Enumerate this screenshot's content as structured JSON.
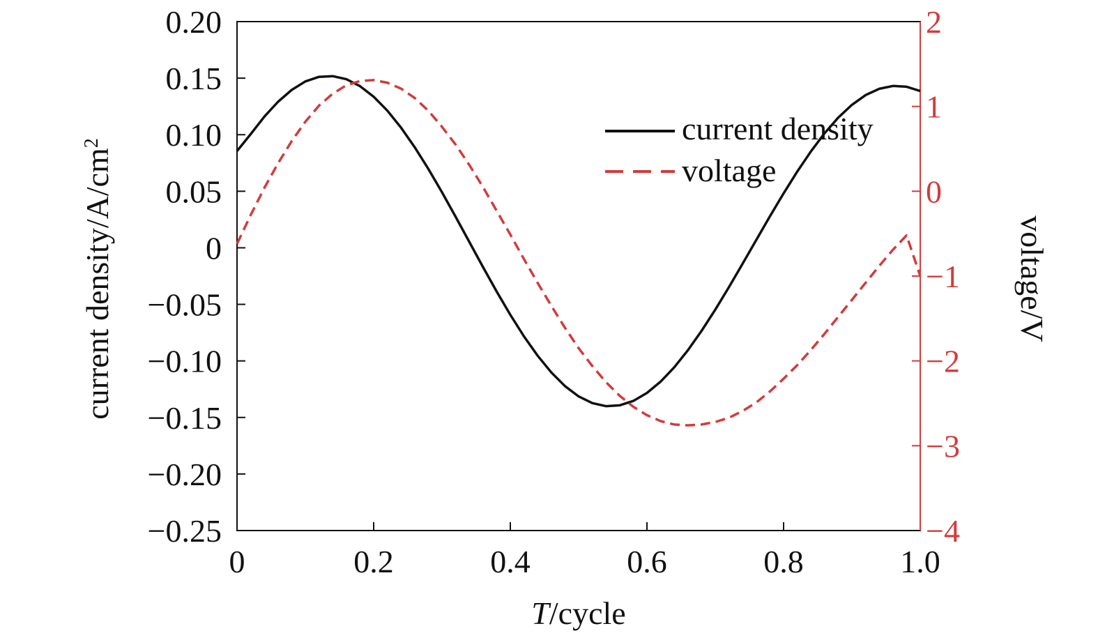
{
  "chart_data": {
    "type": "line",
    "x": [
      0,
      0.02,
      0.04,
      0.06,
      0.08,
      0.1,
      0.12,
      0.14,
      0.16,
      0.18,
      0.2,
      0.22,
      0.24,
      0.26,
      0.28,
      0.3,
      0.32,
      0.34,
      0.36,
      0.38,
      0.4,
      0.42,
      0.44,
      0.46,
      0.48,
      0.5,
      0.52,
      0.54,
      0.56,
      0.58,
      0.6,
      0.62,
      0.64,
      0.66,
      0.68,
      0.7,
      0.72,
      0.74,
      0.76,
      0.78,
      0.8,
      0.82,
      0.84,
      0.86,
      0.88,
      0.9,
      0.92,
      0.94,
      0.96,
      0.98,
      1.0
    ],
    "xlabel_italic": "T",
    "xlabel_rest": "/cycle",
    "ylabel_left": "current density/A/cm",
    "ylabel_left_superscript": "2",
    "ylabel_right": "voltage/V",
    "xlim": [
      0,
      1.0
    ],
    "ylim_left": [
      -0.25,
      0.2
    ],
    "ylim_right": [
      -4,
      2
    ],
    "x_ticks": [
      0,
      0.2,
      0.4,
      0.6,
      0.8,
      1.0
    ],
    "x_tick_labels": [
      "0",
      "0.2",
      "0.4",
      "0.6",
      "0.8",
      "1.0"
    ],
    "y_left_ticks": [
      0.2,
      0.15,
      0.1,
      0.05,
      0,
      -0.05,
      -0.1,
      -0.15,
      -0.2,
      -0.25
    ],
    "y_left_tick_labels": [
      "0.20",
      "0.15",
      "0.10",
      "0.05",
      "0",
      "−0.05",
      "−0.10",
      "−0.15",
      "−0.20",
      "−0.25"
    ],
    "y_right_ticks": [
      2,
      1,
      0,
      -1,
      -2,
      -3,
      -4
    ],
    "y_right_tick_labels": [
      "2",
      "1",
      "0",
      "−1",
      "−2",
      "−3",
      "−4"
    ],
    "legend_position": "upper-right",
    "grid": false,
    "series": [
      {
        "name": "current density",
        "axis": "left",
        "color": "#111111",
        "style": "solid",
        "values": [
          0.0856,
          0.1005,
          0.116,
          0.1291,
          0.1396,
          0.1471,
          0.1512,
          0.1518,
          0.1491,
          0.1429,
          0.1336,
          0.1213,
          0.1063,
          0.089,
          0.0698,
          0.0491,
          0.0274,
          0.0052,
          -0.017,
          -0.0386,
          -0.0592,
          -0.0783,
          -0.0954,
          -0.1102,
          -0.1223,
          -0.1314,
          -0.1373,
          -0.14,
          -0.1393,
          -0.1354,
          -0.1283,
          -0.1183,
          -0.1056,
          -0.0905,
          -0.0734,
          -0.0547,
          -0.0348,
          -0.0141,
          0.0069,
          0.0278,
          0.0481,
          0.0674,
          0.0852,
          0.1013,
          0.1151,
          0.1264,
          0.135,
          0.1406,
          0.1431,
          0.1424,
          0.1386
        ]
      },
      {
        "name": "voltage",
        "axis": "right",
        "color": "#d23b3b",
        "style": "dashed",
        "values": [
          -0.62,
          -0.28,
          0.04,
          0.33,
          0.59,
          0.82,
          1.01,
          1.15,
          1.25,
          1.3,
          1.31,
          1.28,
          1.21,
          1.1,
          0.95,
          0.76,
          0.55,
          0.31,
          0.05,
          -0.23,
          -0.51,
          -0.8,
          -1.08,
          -1.35,
          -1.61,
          -1.85,
          -2.06,
          -2.25,
          -2.41,
          -2.54,
          -2.64,
          -2.71,
          -2.75,
          -2.76,
          -2.75,
          -2.72,
          -2.67,
          -2.59,
          -2.49,
          -2.36,
          -2.21,
          -2.05,
          -1.87,
          -1.68,
          -1.48,
          -1.28,
          -1.08,
          -0.88,
          -0.69,
          -0.52,
          -1.0
        ]
      }
    ]
  }
}
